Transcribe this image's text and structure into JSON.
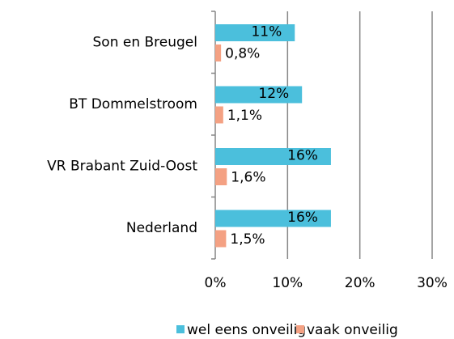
{
  "chart_data": {
    "type": "bar",
    "orientation": "horizontal",
    "categories": [
      "Son en Breugel",
      "BT Dommelstroom",
      "VR Brabant Zuid-Oost",
      "Nederland"
    ],
    "series": [
      {
        "name": "wel eens onveilig",
        "color": "#4bbfdc",
        "values": [
          11,
          12,
          16,
          16
        ],
        "value_labels": [
          "11%",
          "12%",
          "16%",
          "16%"
        ]
      },
      {
        "name": "vaak onveilig",
        "color": "#f4a183",
        "values": [
          0.8,
          1.1,
          1.6,
          1.5
        ],
        "value_labels": [
          "0,8%",
          "1,1%",
          "1,6%",
          "1,5%"
        ]
      }
    ],
    "xlim": [
      0,
      30
    ],
    "xticks": [
      {
        "value": 0,
        "label": "0%"
      },
      {
        "value": 10,
        "label": "10%"
      },
      {
        "value": 20,
        "label": "20%"
      },
      {
        "value": 30,
        "label": "30%"
      }
    ],
    "grid": true,
    "legend": "bottom"
  }
}
